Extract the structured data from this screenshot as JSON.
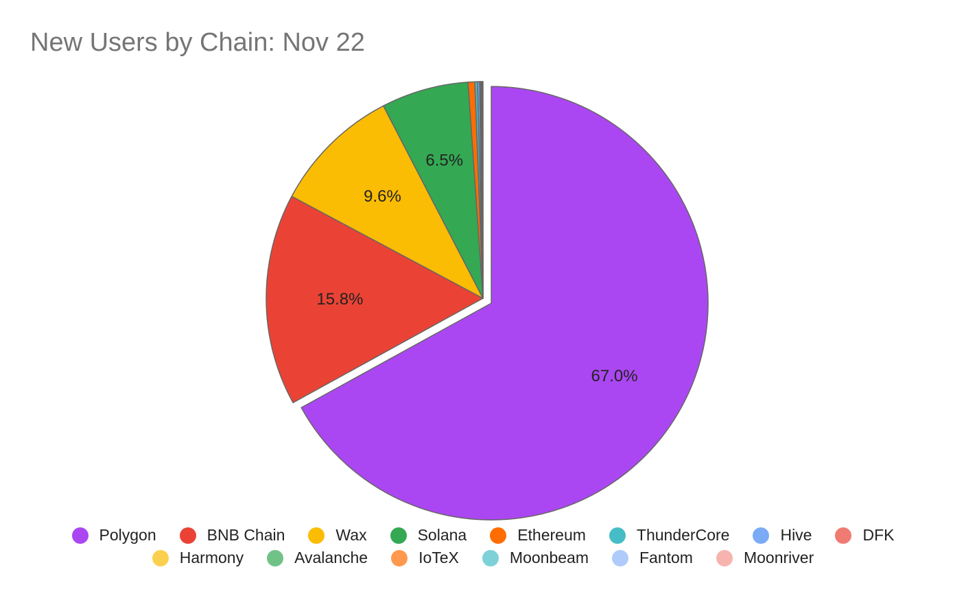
{
  "chart_data": {
    "type": "pie",
    "title": "New Users by Chain: Nov 22",
    "slices": [
      {
        "name": "Polygon",
        "value": 67.0,
        "label": "67.0%",
        "color": "#ab47f2",
        "exploded": true
      },
      {
        "name": "BNB Chain",
        "value": 15.8,
        "label": "15.8%",
        "color": "#ea4335"
      },
      {
        "name": "Wax",
        "value": 9.6,
        "label": "9.6%",
        "color": "#fbbc04"
      },
      {
        "name": "Solana",
        "value": 6.5,
        "label": "6.5%",
        "color": "#34a853"
      },
      {
        "name": "Ethereum",
        "value": 0.5,
        "label": "",
        "color": "#ff6d01"
      },
      {
        "name": "ThunderCore",
        "value": 0.2,
        "label": "",
        "color": "#46bdc6"
      },
      {
        "name": "Hive",
        "value": 0.15,
        "label": "",
        "color": "#7baaf7"
      },
      {
        "name": "DFK",
        "value": 0.08,
        "label": "",
        "color": "#f07b72"
      },
      {
        "name": "Harmony",
        "value": 0.06,
        "label": "",
        "color": "#fcd04f"
      },
      {
        "name": "Avalanche",
        "value": 0.04,
        "label": "",
        "color": "#71c287"
      },
      {
        "name": "IoTeX",
        "value": 0.03,
        "label": "",
        "color": "#ff994d"
      },
      {
        "name": "Moonbeam",
        "value": 0.02,
        "label": "",
        "color": "#7ed1d7"
      },
      {
        "name": "Fantom",
        "value": 0.01,
        "label": "",
        "color": "#afcbfa"
      },
      {
        "name": "Moonriver",
        "value": 0.01,
        "label": "",
        "color": "#f7b4ae"
      }
    ],
    "legend_position": "bottom",
    "start_angle_deg": 0,
    "direction": "clockwise"
  },
  "legend_rows": [
    [
      "Polygon",
      "BNB Chain",
      "Wax",
      "Solana",
      "Ethereum",
      "ThunderCore",
      "Hive",
      "DFK"
    ],
    [
      "Harmony",
      "Avalanche",
      "IoTeX",
      "Moonbeam",
      "Fantom",
      "Moonriver"
    ]
  ]
}
